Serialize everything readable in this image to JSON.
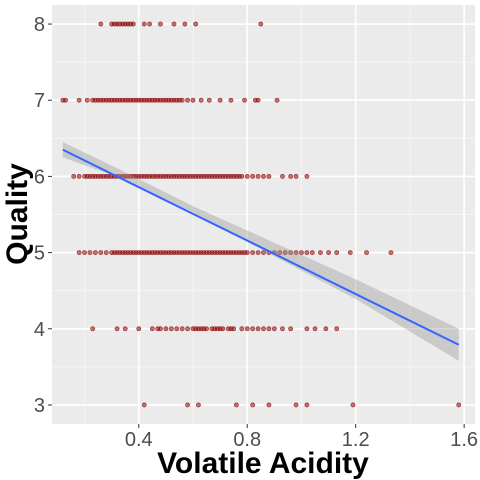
{
  "chart_data": {
    "type": "scatter",
    "title": "",
    "xlabel": "Volatile Acidity",
    "ylabel": "Quality",
    "xlim": [
      0.08,
      1.64
    ],
    "ylim": [
      2.75,
      8.25
    ],
    "x_ticks": [
      0.4,
      0.8,
      1.2,
      1.6
    ],
    "x_tick_labels": [
      "0.4",
      "0.8",
      "1.2",
      "1.6"
    ],
    "y_ticks": [
      3,
      4,
      5,
      6,
      7,
      8
    ],
    "y_tick_labels": [
      "3",
      "4",
      "5",
      "6",
      "7",
      "8"
    ],
    "grid": true,
    "legend": "none",
    "series": [
      {
        "type": "scatter",
        "color": "#8b0000",
        "points_by_quality": {
          "8": [
            0.26,
            0.3,
            0.31,
            0.32,
            0.33,
            0.34,
            0.35,
            0.36,
            0.37,
            0.38,
            0.42,
            0.44,
            0.48,
            0.53,
            0.57,
            0.61,
            0.85
          ],
          "7": [
            0.12,
            0.13,
            0.18,
            0.21,
            0.23,
            0.24,
            0.25,
            0.26,
            0.27,
            0.28,
            0.29,
            0.3,
            0.31,
            0.32,
            0.33,
            0.34,
            0.35,
            0.36,
            0.37,
            0.38,
            0.39,
            0.4,
            0.41,
            0.42,
            0.43,
            0.44,
            0.45,
            0.46,
            0.47,
            0.48,
            0.49,
            0.5,
            0.51,
            0.52,
            0.53,
            0.54,
            0.55,
            0.56,
            0.58,
            0.6,
            0.63,
            0.66,
            0.7,
            0.74,
            0.79,
            0.83,
            0.84,
            0.91
          ],
          "6": [
            0.16,
            0.18,
            0.2,
            0.21,
            0.22,
            0.23,
            0.24,
            0.25,
            0.26,
            0.27,
            0.28,
            0.29,
            0.3,
            0.31,
            0.32,
            0.33,
            0.34,
            0.35,
            0.36,
            0.37,
            0.38,
            0.39,
            0.4,
            0.41,
            0.42,
            0.43,
            0.44,
            0.45,
            0.46,
            0.47,
            0.48,
            0.49,
            0.5,
            0.51,
            0.52,
            0.53,
            0.54,
            0.55,
            0.56,
            0.57,
            0.58,
            0.59,
            0.6,
            0.61,
            0.62,
            0.63,
            0.64,
            0.65,
            0.66,
            0.67,
            0.68,
            0.69,
            0.7,
            0.71,
            0.72,
            0.73,
            0.74,
            0.75,
            0.76,
            0.77,
            0.78,
            0.8,
            0.82,
            0.84,
            0.86,
            0.88,
            0.93,
            0.96,
            0.98,
            1.02
          ],
          "5": [
            0.18,
            0.2,
            0.22,
            0.24,
            0.26,
            0.28,
            0.3,
            0.31,
            0.32,
            0.33,
            0.34,
            0.35,
            0.36,
            0.37,
            0.38,
            0.39,
            0.4,
            0.41,
            0.42,
            0.43,
            0.44,
            0.45,
            0.46,
            0.47,
            0.48,
            0.49,
            0.5,
            0.51,
            0.52,
            0.53,
            0.54,
            0.55,
            0.56,
            0.57,
            0.58,
            0.59,
            0.6,
            0.61,
            0.62,
            0.63,
            0.64,
            0.65,
            0.66,
            0.67,
            0.68,
            0.69,
            0.7,
            0.71,
            0.72,
            0.73,
            0.74,
            0.75,
            0.76,
            0.77,
            0.78,
            0.79,
            0.8,
            0.82,
            0.84,
            0.86,
            0.88,
            0.9,
            0.92,
            0.94,
            0.96,
            0.98,
            1.0,
            1.02,
            1.04,
            1.07,
            1.1,
            1.13,
            1.18,
            1.24,
            1.33
          ],
          "4": [
            0.23,
            0.32,
            0.35,
            0.4,
            0.45,
            0.47,
            0.48,
            0.5,
            0.52,
            0.54,
            0.56,
            0.58,
            0.6,
            0.61,
            0.62,
            0.63,
            0.64,
            0.65,
            0.67,
            0.68,
            0.69,
            0.7,
            0.71,
            0.73,
            0.74,
            0.75,
            0.78,
            0.8,
            0.82,
            0.84,
            0.86,
            0.88,
            0.9,
            0.93,
            0.96,
            1.02,
            1.05,
            1.09,
            1.13
          ],
          "3": [
            0.42,
            0.58,
            0.62,
            0.76,
            0.82,
            0.88,
            0.98,
            1.02,
            1.19,
            1.58
          ]
        }
      },
      {
        "type": "line",
        "color": "#3366ff",
        "x": [
          0.12,
          1.58
        ],
        "y": [
          6.35,
          3.79
        ]
      }
    ],
    "confidence_band": {
      "color": "#999999",
      "x": [
        0.12,
        0.33,
        0.6,
        0.9,
        1.2,
        1.58
      ],
      "lower": [
        6.25,
        5.98,
        5.53,
        4.95,
        4.39,
        3.58
      ],
      "upper": [
        6.45,
        6.09,
        5.61,
        5.13,
        4.65,
        4.0
      ]
    }
  }
}
